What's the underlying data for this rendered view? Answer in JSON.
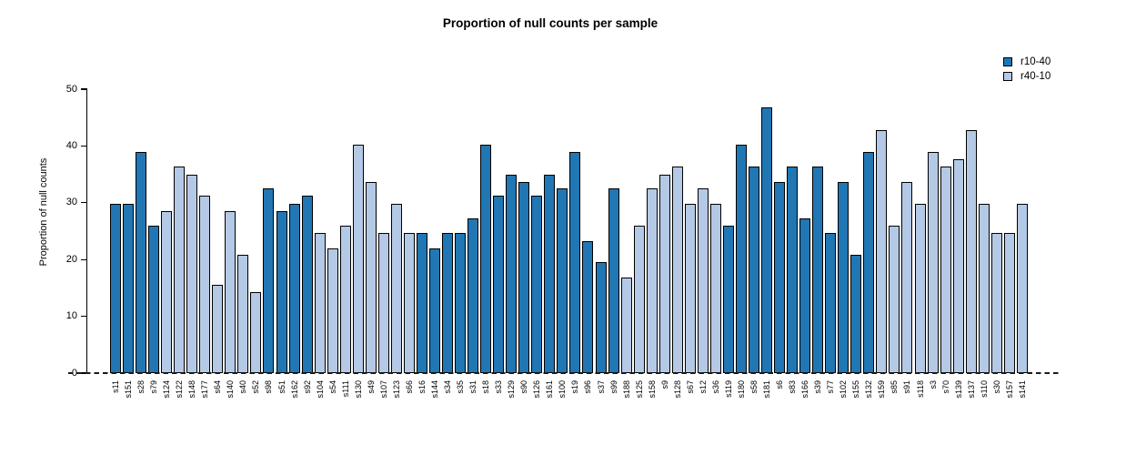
{
  "chart_data": {
    "type": "bar",
    "title": "Proportion of null counts per sample",
    "xlabel": "",
    "ylabel": "Proportion of null counts",
    "ylim": [
      0,
      50
    ],
    "yticks": [
      0,
      10,
      20,
      30,
      40,
      50
    ],
    "grid": false,
    "legend_position": "top-right",
    "zero_line_style": "dashed",
    "legend": [
      {
        "label": "r10-40",
        "color": "#2176B4"
      },
      {
        "label": "r40-10",
        "color": "#B4C9E5"
      }
    ],
    "categories": [
      "s11",
      "s151",
      "s28",
      "s79",
      "s124",
      "s122",
      "s148",
      "s177",
      "s64",
      "s140",
      "s40",
      "s52",
      "s98",
      "s51",
      "s162",
      "s92",
      "s104",
      "s54",
      "s111",
      "s130",
      "s49",
      "s107",
      "s123",
      "s66",
      "s16",
      "s144",
      "s34",
      "s35",
      "s31",
      "s18",
      "s33",
      "s129",
      "s90",
      "s126",
      "s161",
      "s100",
      "s19",
      "s96",
      "s37",
      "s99",
      "s188",
      "s125",
      "s158",
      "s9",
      "s128",
      "s67",
      "s12",
      "s36",
      "s119",
      "s180",
      "s58",
      "s181",
      "s6",
      "s83",
      "s166",
      "s39",
      "s77",
      "s102",
      "s155",
      "s132",
      "s159",
      "s85",
      "s91",
      "s118",
      "s3",
      "s70",
      "s139",
      "s137",
      "s110",
      "s30",
      "s157",
      "s141"
    ],
    "values": [
      29.8,
      29.8,
      39.0,
      25.9,
      28.5,
      36.4,
      35.0,
      31.2,
      15.5,
      28.5,
      20.8,
      14.3,
      32.5,
      28.5,
      29.8,
      31.2,
      24.6,
      22.0,
      25.9,
      40.2,
      33.7,
      24.6,
      29.8,
      24.6,
      24.6,
      22.0,
      24.6,
      24.6,
      27.3,
      40.2,
      31.2,
      35.0,
      33.7,
      31.2,
      35.0,
      32.5,
      39.0,
      23.3,
      19.6,
      32.5,
      16.9,
      25.9,
      32.5,
      35.0,
      36.4,
      29.8,
      32.5,
      29.8,
      25.9,
      40.2,
      36.4,
      46.8,
      33.7,
      36.4,
      27.3,
      36.4,
      24.6,
      33.7,
      20.8,
      39.0,
      42.8,
      25.9,
      33.7,
      29.8,
      39.0,
      36.4,
      37.6,
      42.8,
      29.8,
      24.6,
      24.6,
      29.8
    ],
    "groups": [
      "r10-40",
      "r10-40",
      "r10-40",
      "r10-40",
      "r40-10",
      "r40-10",
      "r40-10",
      "r40-10",
      "r40-10",
      "r40-10",
      "r40-10",
      "r40-10",
      "r10-40",
      "r10-40",
      "r10-40",
      "r10-40",
      "r40-10",
      "r40-10",
      "r40-10",
      "r40-10",
      "r40-10",
      "r40-10",
      "r40-10",
      "r40-10",
      "r10-40",
      "r10-40",
      "r10-40",
      "r10-40",
      "r10-40",
      "r10-40",
      "r10-40",
      "r10-40",
      "r10-40",
      "r10-40",
      "r10-40",
      "r10-40",
      "r10-40",
      "r10-40",
      "r10-40",
      "r10-40",
      "r40-10",
      "r40-10",
      "r40-10",
      "r40-10",
      "r40-10",
      "r40-10",
      "r40-10",
      "r40-10",
      "r10-40",
      "r10-40",
      "r10-40",
      "r10-40",
      "r10-40",
      "r10-40",
      "r10-40",
      "r10-40",
      "r10-40",
      "r10-40",
      "r10-40",
      "r10-40",
      "r40-10",
      "r40-10",
      "r40-10",
      "r40-10",
      "r40-10",
      "r40-10",
      "r40-10",
      "r40-10",
      "r40-10",
      "r40-10",
      "r40-10",
      "r40-10"
    ]
  }
}
